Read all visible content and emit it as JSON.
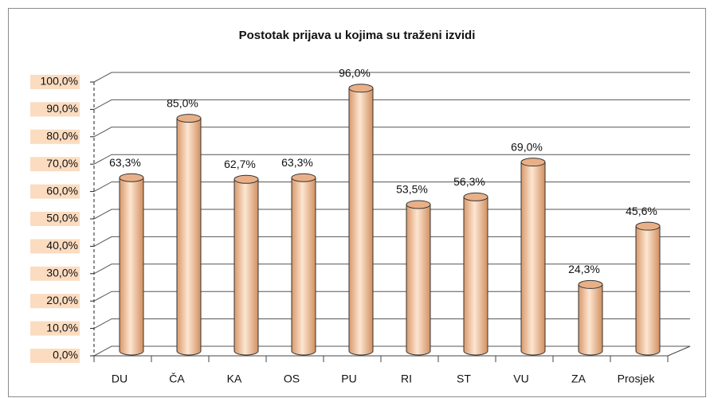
{
  "chart_data": {
    "type": "bar",
    "title": "Postotak prijava u kojima su traženi izvidi",
    "categories": [
      "DU",
      "ČA",
      "KA",
      "OS",
      "PU",
      "RI",
      "ST",
      "VU",
      "ZA",
      "Prosjek"
    ],
    "values": [
      63.3,
      85.0,
      62.7,
      63.3,
      96.0,
      53.5,
      56.3,
      69.0,
      24.3,
      45.6
    ],
    "value_labels": [
      "63,3%",
      "85,0%",
      "62,7%",
      "63,3%",
      "96,0%",
      "53,5%",
      "56,3%",
      "69,0%",
      "24,3%",
      "45,6%"
    ],
    "color": "#f7c9a0",
    "ylim": [
      0,
      100
    ],
    "yticks": [
      {
        "value": 0,
        "label": "0,0%"
      },
      {
        "value": 10,
        "label": "10,0%"
      },
      {
        "value": 20,
        "label": "20,0%"
      },
      {
        "value": 30,
        "label": "30,0%"
      },
      {
        "value": 40,
        "label": "40,0%"
      },
      {
        "value": 50,
        "label": "50,0%"
      },
      {
        "value": 60,
        "label": "60,0%"
      },
      {
        "value": 70,
        "label": "70,0%"
      },
      {
        "value": 80,
        "label": "80,0%"
      },
      {
        "value": 90,
        "label": "90,0%"
      },
      {
        "value": 100,
        "label": "100,0%"
      }
    ],
    "grid": true
  }
}
